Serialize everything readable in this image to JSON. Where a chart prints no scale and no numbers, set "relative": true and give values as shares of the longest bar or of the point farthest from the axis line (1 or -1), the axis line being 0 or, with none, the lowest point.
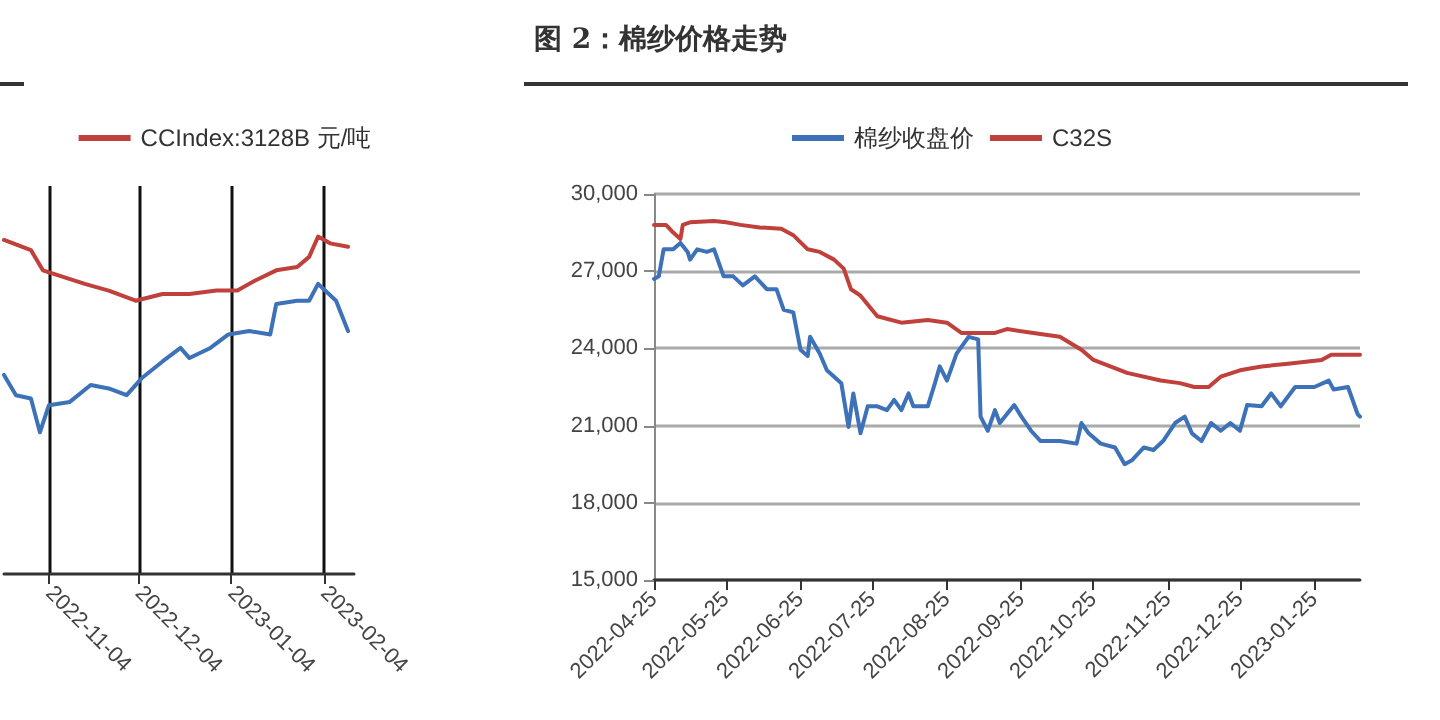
{
  "chart_data": [
    {
      "type": "line",
      "relative": true,
      "legend": "top",
      "grid": "x",
      "marker": "none",
      "line_style": "solid",
      "xlim": [
        "2022-10-20",
        "2023-02-14"
      ],
      "xticks": [
        "2022-11-04",
        "2022-12-04",
        "2023-01-04",
        "2023-02-04"
      ],
      "series": [
        {
          "color": "#3d72b8",
          "x": [
            "2022-10-20",
            "2022-10-24",
            "2022-10-29",
            "2022-11-01",
            "2022-11-04",
            "2022-11-11",
            "2022-11-18",
            "2022-11-24",
            "2022-11-30",
            "2022-12-05",
            "2022-12-12",
            "2022-12-18",
            "2022-12-21",
            "2022-12-28",
            "2023-01-03",
            "2023-01-10",
            "2023-01-17",
            "2023-01-19",
            "2023-01-26",
            "2023-01-30",
            "2023-02-02",
            "2023-02-08",
            "2023-02-12"
          ],
          "values": [
            0.59,
            0.53,
            0.52,
            0.42,
            0.5,
            0.51,
            0.56,
            0.55,
            0.53,
            0.58,
            0.63,
            0.67,
            0.64,
            0.67,
            0.71,
            0.72,
            0.71,
            0.8,
            0.81,
            0.81,
            0.86,
            0.81,
            0.72
          ]
        },
        {
          "name": "CCIndex:3128B 元/吨",
          "color": "#c0403c",
          "x": [
            "2022-10-20",
            "2022-10-29",
            "2022-11-02",
            "2022-11-09",
            "2022-11-16",
            "2022-11-24",
            "2022-12-03",
            "2022-12-12",
            "2022-12-21",
            "2022-12-30",
            "2023-01-06",
            "2023-01-12",
            "2023-01-19",
            "2023-01-26",
            "2023-01-30",
            "2023-02-02",
            "2023-02-06",
            "2023-02-12"
          ],
          "values": [
            0.99,
            0.96,
            0.9,
            0.88,
            0.86,
            0.84,
            0.81,
            0.83,
            0.83,
            0.84,
            0.84,
            0.87,
            0.9,
            0.91,
            0.94,
            1.0,
            0.98,
            0.97
          ]
        }
      ]
    },
    {
      "type": "line",
      "title": "图 2：棉纱价格走势",
      "legend": "top",
      "grid": "y",
      "marker": "none",
      "line_style": "solid",
      "xlim": [
        "2022-04-25",
        "2023-02-13"
      ],
      "xticks": [
        "2022-04-25",
        "2022-05-25",
        "2022-06-25",
        "2022-07-25",
        "2022-08-25",
        "2022-09-25",
        "2022-10-25",
        "2022-11-25",
        "2022-12-25",
        "2023-01-25"
      ],
      "ylim": [
        15000,
        30000
      ],
      "yticks": [
        {
          "value": 15000,
          "label": "15,000"
        },
        {
          "value": 18000,
          "label": "18,000"
        },
        {
          "value": 21000,
          "label": "21,000"
        },
        {
          "value": 24000,
          "label": "24,000"
        },
        {
          "value": 27000,
          "label": "27,000"
        },
        {
          "value": 30000,
          "label": "30,000"
        }
      ],
      "series": [
        {
          "name": "棉纱收盘价",
          "color": "#3d72b8",
          "x": [
            "2022-04-25",
            "2022-04-27",
            "2022-04-29",
            "2022-05-03",
            "2022-05-06",
            "2022-05-09",
            "2022-05-10",
            "2022-05-13",
            "2022-05-17",
            "2022-05-20",
            "2022-05-24",
            "2022-05-28",
            "2022-06-01",
            "2022-06-06",
            "2022-06-11",
            "2022-06-15",
            "2022-06-18",
            "2022-06-22",
            "2022-06-25",
            "2022-06-28",
            "2022-06-29",
            "2022-07-03",
            "2022-07-06",
            "2022-07-12",
            "2022-07-15",
            "2022-07-17",
            "2022-07-20",
            "2022-07-23",
            "2022-07-27",
            "2022-07-31",
            "2022-08-03",
            "2022-08-06",
            "2022-08-09",
            "2022-08-11",
            "2022-08-17",
            "2022-08-20",
            "2022-08-22",
            "2022-08-25",
            "2022-08-29",
            "2022-09-03",
            "2022-09-07",
            "2022-09-08",
            "2022-09-11",
            "2022-09-14",
            "2022-09-16",
            "2022-09-22",
            "2022-09-25",
            "2022-09-29",
            "2022-10-03",
            "2022-10-11",
            "2022-10-18",
            "2022-10-20",
            "2022-10-23",
            "2022-10-28",
            "2022-11-03",
            "2022-11-07",
            "2022-11-10",
            "2022-11-15",
            "2022-11-19",
            "2022-11-23",
            "2022-11-28",
            "2022-12-02",
            "2022-12-05",
            "2022-12-09",
            "2022-12-13",
            "2022-12-17",
            "2022-12-21",
            "2022-12-25",
            "2022-12-28",
            "2023-01-03",
            "2023-01-07",
            "2023-01-11",
            "2023-01-17",
            "2023-01-25",
            "2023-01-31",
            "2023-02-02",
            "2023-02-08",
            "2023-02-12",
            "2023-02-13"
          ],
          "values": [
            26700,
            26800,
            27850,
            27850,
            28100,
            27750,
            27450,
            27850,
            27750,
            27850,
            26800,
            26800,
            26450,
            26800,
            26300,
            26300,
            25500,
            25400,
            23950,
            23700,
            24450,
            23800,
            23150,
            22650,
            20950,
            22250,
            20700,
            21750,
            21750,
            21600,
            22000,
            21600,
            22250,
            21750,
            21750,
            22650,
            23300,
            22750,
            23800,
            24450,
            24350,
            21350,
            20800,
            21600,
            21100,
            21800,
            21350,
            20800,
            20400,
            20400,
            20300,
            21100,
            20700,
            20300,
            20150,
            19500,
            19650,
            20150,
            20050,
            20400,
            21100,
            21350,
            20700,
            20400,
            21100,
            20800,
            21100,
            20800,
            21800,
            21750,
            22250,
            21750,
            22500,
            22500,
            22750,
            22400,
            22500,
            21450,
            21350
          ]
        },
        {
          "name": "C32S",
          "color": "#c0403c",
          "x": [
            "2022-04-25",
            "2022-04-30",
            "2022-05-03",
            "2022-05-06",
            "2022-05-07",
            "2022-05-10",
            "2022-05-20",
            "2022-05-25",
            "2022-05-31",
            "2022-06-08",
            "2022-06-17",
            "2022-06-22",
            "2022-06-28",
            "2022-07-03",
            "2022-07-09",
            "2022-07-13",
            "2022-07-16",
            "2022-07-20",
            "2022-07-27",
            "2022-08-06",
            "2022-08-17",
            "2022-08-25",
            "2022-08-31",
            "2022-09-14",
            "2022-09-19",
            "2022-09-30",
            "2022-10-11",
            "2022-10-20",
            "2022-10-25",
            "2022-11-08",
            "2022-11-22",
            "2022-11-30",
            "2022-12-06",
            "2022-12-12",
            "2022-12-17",
            "2022-12-25",
            "2023-01-03",
            "2023-01-14",
            "2023-01-28",
            "2023-02-01",
            "2023-02-13"
          ],
          "values": [
            28800,
            28800,
            28500,
            28250,
            28800,
            28900,
            28950,
            28900,
            28800,
            28700,
            28650,
            28400,
            27850,
            27750,
            27450,
            27100,
            26300,
            26050,
            25250,
            25000,
            25100,
            25000,
            24600,
            24600,
            24750,
            24600,
            24450,
            23950,
            23550,
            23050,
            22750,
            22650,
            22500,
            22500,
            22900,
            23150,
            23300,
            23400,
            23550,
            23750,
            23750
          ]
        }
      ]
    }
  ]
}
